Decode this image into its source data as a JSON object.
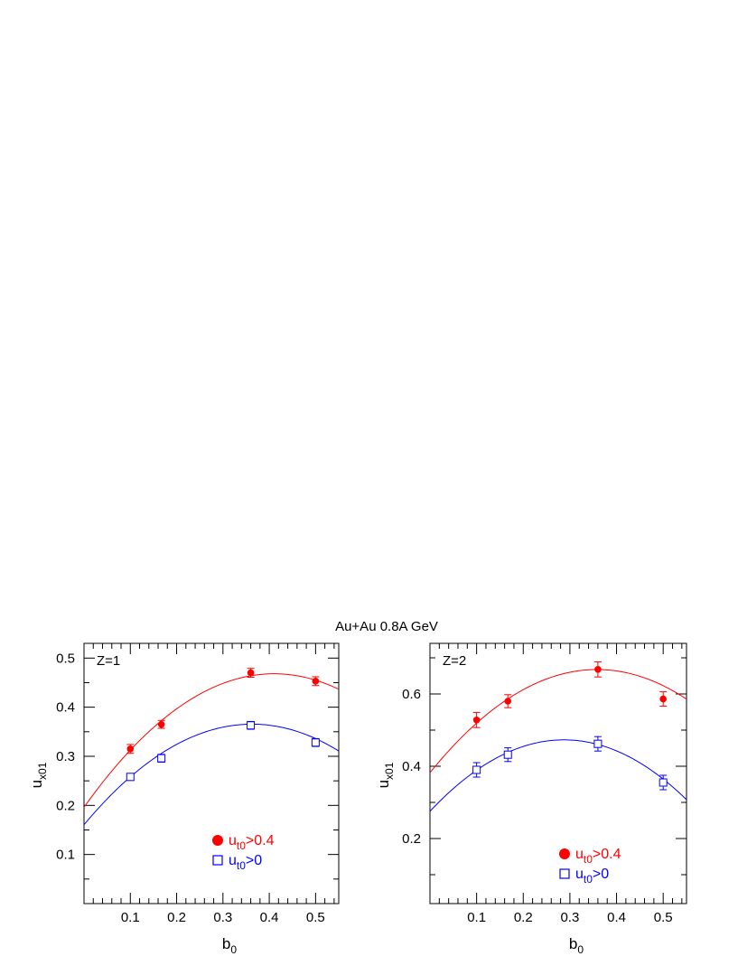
{
  "figure_title": "Au+Au 0.8A GeV",
  "chart_data": [
    {
      "type": "scatter",
      "panel_label": "Z=1",
      "xlabel": "b",
      "xlabel_sub": "0",
      "ylabel": "u",
      "ylabel_sub": "x01",
      "xlim": [
        0,
        0.55
      ],
      "ylim": [
        0,
        0.53
      ],
      "xticks": [
        0.1,
        0.2,
        0.3,
        0.4,
        0.5
      ],
      "xticklabels": [
        "0.1",
        "0.2",
        "0.3",
        "0.4",
        "0.5"
      ],
      "yticks": [
        0.1,
        0.2,
        0.3,
        0.4,
        0.5
      ],
      "yticklabels": [
        "0.1",
        "0.2",
        "0.3",
        "0.4",
        "0.5"
      ],
      "grid": false,
      "legend_position": "bottom-right",
      "series": [
        {
          "legend_main": "u",
          "legend_sub": "t0",
          "legend_tail": ">0.4",
          "color": "#ff0000",
          "marker": "filled-circle",
          "x": [
            0.1,
            0.167,
            0.36,
            0.5
          ],
          "y": [
            0.315,
            0.365,
            0.47,
            0.453
          ],
          "err": [
            0.009,
            0.008,
            0.009,
            0.009
          ],
          "fit": {
            "a": 0.1962,
            "b": 1.3254,
            "c": -1.6154
          }
        },
        {
          "legend_main": "u",
          "legend_sub": "t0",
          "legend_tail": ">0",
          "color": "#0000ff",
          "marker": "open-square",
          "x": [
            0.1,
            0.167,
            0.36,
            0.5
          ],
          "y": [
            0.258,
            0.296,
            0.363,
            0.328
          ],
          "err": [
            0.007,
            0.008,
            0.008,
            0.008
          ],
          "fit": {
            "a": 0.1606,
            "b": 1.1296,
            "c": -1.5574
          }
        }
      ]
    },
    {
      "type": "scatter",
      "panel_label": "Z=2",
      "xlabel": "b",
      "xlabel_sub": "0",
      "ylabel": "u",
      "ylabel_sub": "x01",
      "xlim": [
        0,
        0.55
      ],
      "ylim": [
        0.02,
        0.74
      ],
      "xticks": [
        0.1,
        0.2,
        0.3,
        0.4,
        0.5
      ],
      "xticklabels": [
        "0.1",
        "0.2",
        "0.3",
        "0.4",
        "0.5"
      ],
      "yticks": [
        0.2,
        0.4,
        0.6
      ],
      "yticklabels": [
        "0.2",
        "0.4",
        "0.6"
      ],
      "grid": false,
      "legend_position": "bottom-right",
      "series": [
        {
          "legend_main": "u",
          "legend_sub": "t0",
          "legend_tail": ">0.4",
          "color": "#ff0000",
          "marker": "filled-circle",
          "x": [
            0.1,
            0.167,
            0.36,
            0.5
          ],
          "y": [
            0.528,
            0.58,
            0.668,
            0.586
          ],
          "err": [
            0.021,
            0.018,
            0.021,
            0.02
          ],
          "fit": {
            "a": 0.3822,
            "b": 1.5936,
            "c": -2.2246
          }
        },
        {
          "legend_main": "u",
          "legend_sub": "t0",
          "legend_tail": ">0",
          "color": "#0000ff",
          "marker": "open-square",
          "x": [
            0.1,
            0.167,
            0.36,
            0.5
          ],
          "y": [
            0.39,
            0.432,
            0.462,
            0.355
          ],
          "err": [
            0.02,
            0.019,
            0.02,
            0.02
          ],
          "fit": {
            "a": 0.2753,
            "b": 1.3767,
            "c": -2.3966
          }
        }
      ]
    }
  ]
}
